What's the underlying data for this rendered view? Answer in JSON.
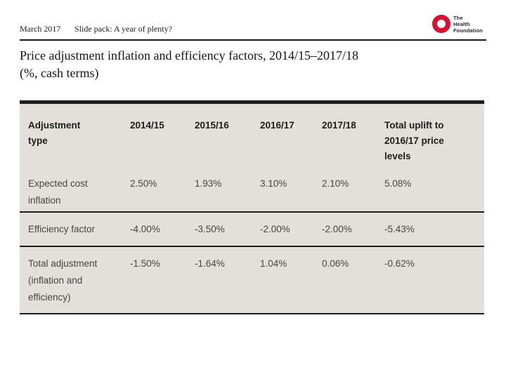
{
  "slide": {
    "date": "March 2017",
    "pack_label": "Slide pack: A year of plenty?",
    "title_line1": "Price adjustment inflation and efficiency factors, 2014/15–2017/18",
    "title_line2": "(%, cash terms)"
  },
  "logo": {
    "line1": "The",
    "line2": "Health",
    "line3": "Foundation"
  },
  "table": {
    "columns": [
      "Adjustment type",
      "2014/15",
      "2015/16",
      "2016/17",
      "2017/18",
      "Total uplift to 2016/17 price levels"
    ],
    "rows": [
      {
        "label": "Expected cost inflation",
        "values": [
          "2.50%",
          "1.93%",
          "3.10%",
          "2.10%",
          "5.08%"
        ]
      },
      {
        "label": "Efficiency factor",
        "values": [
          "-4.00%",
          "-3.50%",
          "-2.00%",
          "-2.00%",
          "-5.43%"
        ]
      },
      {
        "label": "Total adjustment (inflation and efficiency)",
        "values": [
          "-1.50%",
          "-1.64%",
          "1.04%",
          "0.06%",
          "-0.62%"
        ]
      }
    ]
  },
  "colors": {
    "logo_red": "#d8112f",
    "logo_text": "#26263a",
    "table_background": "#e3e0db",
    "border_dark": "#1d1d1b",
    "data_text": "#454545",
    "heading_text": "#1a1a1a"
  }
}
